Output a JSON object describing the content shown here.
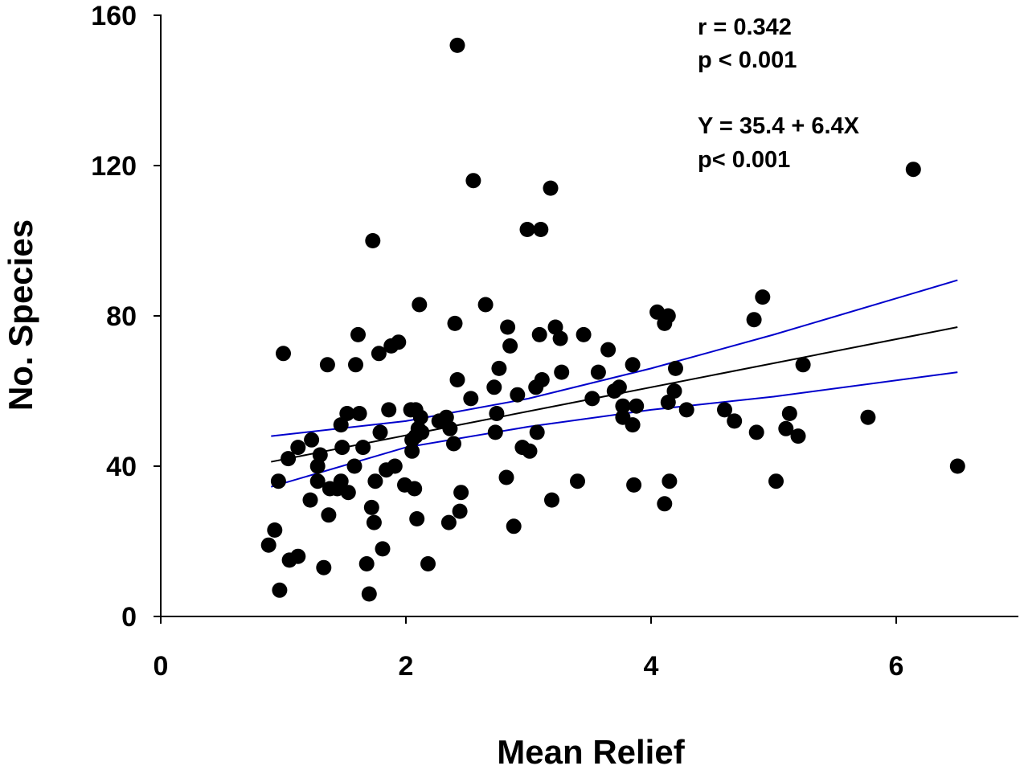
{
  "chart_data": {
    "type": "scatter",
    "title": "",
    "xlabel": "Mean Relief",
    "ylabel": "No. Species",
    "xlim": [
      0,
      7
    ],
    "ylim": [
      0,
      160
    ],
    "xticks": [
      0,
      2,
      4,
      6
    ],
    "yticks": [
      0,
      40,
      80,
      120,
      160
    ],
    "x_tick_labels": [
      "0",
      "2",
      "4",
      "6"
    ],
    "y_tick_labels": [
      "0",
      "40",
      "80",
      "120",
      "160"
    ],
    "grid": false,
    "legend": "none",
    "annotations": [
      "r = 0.342",
      "p < 0.001",
      "Y = 35.4 + 6.4X",
      "p< 0.001"
    ],
    "colors": {
      "points": "#000000",
      "fit_line": "#000000",
      "confidence_band": "#0000cc"
    },
    "regression": {
      "intercept": 35.4,
      "slope": 6.4,
      "x_range": [
        0.9,
        6.5
      ]
    },
    "confidence_band": {
      "upper": [
        [
          0.9,
          48
        ],
        [
          2.0,
          52
        ],
        [
          3.0,
          58
        ],
        [
          4.0,
          66
        ],
        [
          5.0,
          75
        ],
        [
          6.5,
          89.5
        ]
      ],
      "lower": [
        [
          0.9,
          34.5
        ],
        [
          2.0,
          45
        ],
        [
          3.0,
          50.5
        ],
        [
          4.0,
          55
        ],
        [
          5.0,
          58.5
        ],
        [
          6.5,
          65
        ]
      ]
    },
    "points": [
      {
        "x": 0.88,
        "y": 19
      },
      {
        "x": 0.93,
        "y": 23
      },
      {
        "x": 0.96,
        "y": 36
      },
      {
        "x": 0.97,
        "y": 7
      },
      {
        "x": 1.0,
        "y": 70
      },
      {
        "x": 1.04,
        "y": 42
      },
      {
        "x": 1.05,
        "y": 15
      },
      {
        "x": 1.12,
        "y": 16
      },
      {
        "x": 1.12,
        "y": 45
      },
      {
        "x": 1.22,
        "y": 31
      },
      {
        "x": 1.23,
        "y": 47
      },
      {
        "x": 1.28,
        "y": 36
      },
      {
        "x": 1.28,
        "y": 40
      },
      {
        "x": 1.3,
        "y": 43
      },
      {
        "x": 1.33,
        "y": 13
      },
      {
        "x": 1.36,
        "y": 67
      },
      {
        "x": 1.37,
        "y": 27
      },
      {
        "x": 1.38,
        "y": 34
      },
      {
        "x": 1.44,
        "y": 34
      },
      {
        "x": 1.47,
        "y": 36
      },
      {
        "x": 1.47,
        "y": 51
      },
      {
        "x": 1.48,
        "y": 45
      },
      {
        "x": 1.52,
        "y": 54
      },
      {
        "x": 1.53,
        "y": 33
      },
      {
        "x": 1.58,
        "y": 40
      },
      {
        "x": 1.59,
        "y": 67
      },
      {
        "x": 1.61,
        "y": 75
      },
      {
        "x": 1.62,
        "y": 54
      },
      {
        "x": 1.65,
        "y": 45
      },
      {
        "x": 1.68,
        "y": 14
      },
      {
        "x": 1.7,
        "y": 6
      },
      {
        "x": 1.72,
        "y": 29
      },
      {
        "x": 1.73,
        "y": 100
      },
      {
        "x": 1.74,
        "y": 25
      },
      {
        "x": 1.75,
        "y": 36
      },
      {
        "x": 1.78,
        "y": 70
      },
      {
        "x": 1.79,
        "y": 49
      },
      {
        "x": 1.81,
        "y": 18
      },
      {
        "x": 1.84,
        "y": 39
      },
      {
        "x": 1.86,
        "y": 55
      },
      {
        "x": 1.88,
        "y": 72
      },
      {
        "x": 1.91,
        "y": 40
      },
      {
        "x": 1.94,
        "y": 73
      },
      {
        "x": 1.99,
        "y": 35
      },
      {
        "x": 2.04,
        "y": 55
      },
      {
        "x": 2.05,
        "y": 44
      },
      {
        "x": 2.05,
        "y": 47
      },
      {
        "x": 2.07,
        "y": 34
      },
      {
        "x": 2.08,
        "y": 55
      },
      {
        "x": 2.08,
        "y": 48
      },
      {
        "x": 2.09,
        "y": 26
      },
      {
        "x": 2.1,
        "y": 50
      },
      {
        "x": 2.11,
        "y": 83
      },
      {
        "x": 2.12,
        "y": 53
      },
      {
        "x": 2.13,
        "y": 49
      },
      {
        "x": 2.18,
        "y": 14
      },
      {
        "x": 2.27,
        "y": 52
      },
      {
        "x": 2.3,
        "y": 52
      },
      {
        "x": 2.33,
        "y": 53
      },
      {
        "x": 2.35,
        "y": 25
      },
      {
        "x": 2.36,
        "y": 50
      },
      {
        "x": 2.39,
        "y": 46
      },
      {
        "x": 2.4,
        "y": 78
      },
      {
        "x": 2.42,
        "y": 152
      },
      {
        "x": 2.42,
        "y": 63
      },
      {
        "x": 2.44,
        "y": 28
      },
      {
        "x": 2.45,
        "y": 33
      },
      {
        "x": 2.53,
        "y": 58
      },
      {
        "x": 2.55,
        "y": 116
      },
      {
        "x": 2.65,
        "y": 83
      },
      {
        "x": 2.72,
        "y": 61
      },
      {
        "x": 2.73,
        "y": 49
      },
      {
        "x": 2.74,
        "y": 54
      },
      {
        "x": 2.76,
        "y": 66
      },
      {
        "x": 2.82,
        "y": 37
      },
      {
        "x": 2.83,
        "y": 77
      },
      {
        "x": 2.85,
        "y": 72
      },
      {
        "x": 2.88,
        "y": 24
      },
      {
        "x": 2.91,
        "y": 59
      },
      {
        "x": 2.95,
        "y": 45
      },
      {
        "x": 2.99,
        "y": 103
      },
      {
        "x": 3.01,
        "y": 44
      },
      {
        "x": 3.06,
        "y": 61
      },
      {
        "x": 3.07,
        "y": 49
      },
      {
        "x": 3.09,
        "y": 75
      },
      {
        "x": 3.1,
        "y": 103
      },
      {
        "x": 3.11,
        "y": 63
      },
      {
        "x": 3.18,
        "y": 114
      },
      {
        "x": 3.19,
        "y": 31
      },
      {
        "x": 3.22,
        "y": 77
      },
      {
        "x": 3.26,
        "y": 74
      },
      {
        "x": 3.27,
        "y": 65
      },
      {
        "x": 3.4,
        "y": 36
      },
      {
        "x": 3.45,
        "y": 75
      },
      {
        "x": 3.52,
        "y": 58
      },
      {
        "x": 3.57,
        "y": 65
      },
      {
        "x": 3.65,
        "y": 71
      },
      {
        "x": 3.7,
        "y": 60
      },
      {
        "x": 3.74,
        "y": 61
      },
      {
        "x": 3.77,
        "y": 56
      },
      {
        "x": 3.77,
        "y": 53
      },
      {
        "x": 3.85,
        "y": 67
      },
      {
        "x": 3.85,
        "y": 51
      },
      {
        "x": 3.86,
        "y": 35
      },
      {
        "x": 3.88,
        "y": 56
      },
      {
        "x": 4.05,
        "y": 81
      },
      {
        "x": 4.11,
        "y": 78
      },
      {
        "x": 4.11,
        "y": 30
      },
      {
        "x": 4.14,
        "y": 80
      },
      {
        "x": 4.14,
        "y": 57
      },
      {
        "x": 4.15,
        "y": 36
      },
      {
        "x": 4.19,
        "y": 60
      },
      {
        "x": 4.2,
        "y": 66
      },
      {
        "x": 4.29,
        "y": 55
      },
      {
        "x": 4.6,
        "y": 55
      },
      {
        "x": 4.68,
        "y": 52
      },
      {
        "x": 4.84,
        "y": 79
      },
      {
        "x": 4.86,
        "y": 49
      },
      {
        "x": 4.91,
        "y": 85
      },
      {
        "x": 5.02,
        "y": 36
      },
      {
        "x": 5.1,
        "y": 50
      },
      {
        "x": 5.13,
        "y": 54
      },
      {
        "x": 5.2,
        "y": 48
      },
      {
        "x": 5.24,
        "y": 67
      },
      {
        "x": 5.77,
        "y": 53
      },
      {
        "x": 6.14,
        "y": 119
      },
      {
        "x": 6.5,
        "y": 40
      }
    ]
  }
}
